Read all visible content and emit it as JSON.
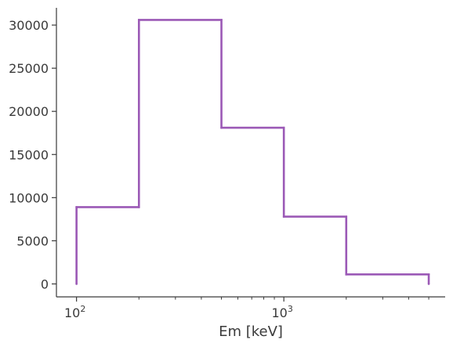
{
  "chart_data": {
    "type": "line",
    "style": "step",
    "title": "",
    "xlabel": "Em [keV]",
    "ylabel": "",
    "xscale": "log",
    "xlim": [
      80,
      6000
    ],
    "ylim": [
      -1500,
      32000
    ],
    "grid": false,
    "legend": "none",
    "colors": {
      "series": "#9b59b6",
      "axis": "#3a3a3a"
    },
    "bin_edges": [
      100,
      200,
      500,
      1000,
      2000,
      5000
    ],
    "values": [
      8900,
      30600,
      18100,
      7800,
      1100
    ],
    "y_ticks": [
      0,
      5000,
      10000,
      15000,
      20000,
      25000,
      30000
    ],
    "y_tick_labels": [
      "0",
      "5000",
      "10000",
      "15000",
      "20000",
      "25000",
      "30000"
    ],
    "x_major_ticks": [
      100,
      1000
    ],
    "x_major_tick_labels": [
      {
        "base": "10",
        "exp": "2"
      },
      {
        "base": "10",
        "exp": "3"
      }
    ],
    "x_minor_ticks": [
      200,
      300,
      400,
      500,
      600,
      700,
      800,
      900,
      2000,
      3000,
      4000,
      5000
    ]
  }
}
